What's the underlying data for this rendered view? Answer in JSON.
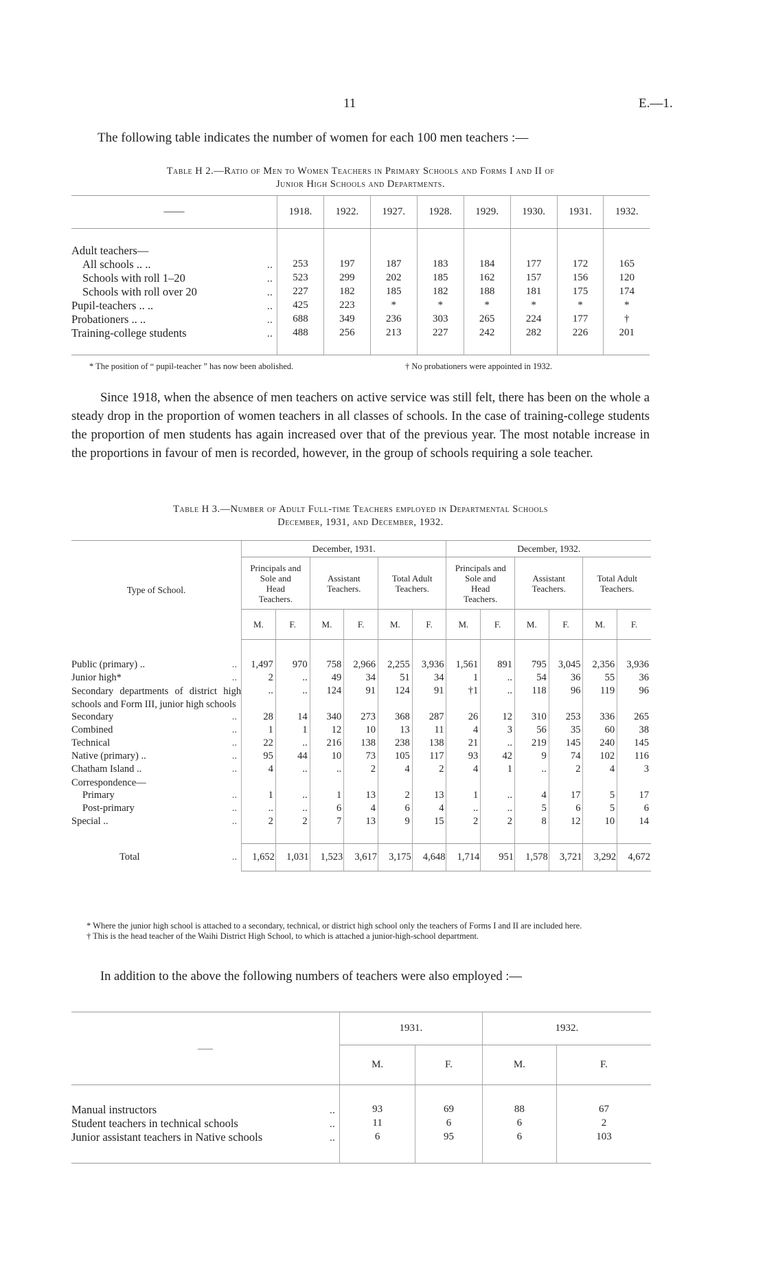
{
  "header": {
    "page_number": "11",
    "code": "E.—1."
  },
  "intro": "The following table indicates the number of women for each 100 men teachers :—",
  "table_h2": {
    "caption_line1": "Table H 2.—Ratio of Men to Women Teachers in Primary Schools and Forms I and II of",
    "caption_line2": "Junior High Schools and Departments.",
    "corner": "——",
    "years": [
      "1918.",
      "1922.",
      "1927.",
      "1928.",
      "1929.",
      "1930.",
      "1931.",
      "1932."
    ],
    "rows": [
      {
        "label": "Adult teachers—",
        "indent": false,
        "dots": "",
        "values": [
          "",
          "",
          "",
          "",
          "",
          "",
          "",
          ""
        ]
      },
      {
        "label": "All schools  ..     ..",
        "indent": true,
        "dots": "..",
        "values": [
          "253",
          "197",
          "187",
          "183",
          "184",
          "177",
          "172",
          "165"
        ]
      },
      {
        "label": "Schools with roll 1–20",
        "indent": true,
        "dots": "..",
        "values": [
          "523",
          "299",
          "202",
          "185",
          "162",
          "157",
          "156",
          "120"
        ]
      },
      {
        "label": "Schools with roll over 20",
        "indent": true,
        "dots": "..",
        "values": [
          "227",
          "182",
          "185",
          "182",
          "188",
          "181",
          "175",
          "174"
        ]
      },
      {
        "label": "Pupil-teachers ..     ..",
        "indent": false,
        "dots": "..",
        "values": [
          "425",
          "223",
          "*",
          "*",
          "*",
          "*",
          "*",
          "*"
        ]
      },
      {
        "label": "Probationers  ..     ..",
        "indent": false,
        "dots": "..",
        "values": [
          "688",
          "349",
          "236",
          "303",
          "265",
          "224",
          "177",
          "†"
        ]
      },
      {
        "label": "Training-college students",
        "indent": false,
        "dots": "..",
        "values": [
          "488",
          "256",
          "213",
          "227",
          "242",
          "282",
          "226",
          "201"
        ]
      }
    ],
    "footnote_star": "* The position of “ pupil-teacher ” has now been abolished.",
    "footnote_dagger": "† No probationers were appointed in 1932."
  },
  "paragraph1": "Since 1918, when the absence of men teachers on active service was still felt, there has been on the whole a steady drop in the proportion of women teachers in all classes of schools. In the case of training-college students the proportion of men students has again increased over that of the previous year. The most notable increase in the proportions in favour of men is recorded, however, in the group of schools requiring a sole teacher.",
  "table_h3": {
    "caption_line1": "Table H 3.—Number of Adult Full-time Teachers employed in Departmental Schools",
    "caption_line2": "December, 1931, and December, 1932.",
    "type_header": "Type of School.",
    "periods": [
      "December, 1931.",
      "December, 1932."
    ],
    "groups": [
      "Principals and Sole and Head Teachers.",
      "Assistant Teachers.",
      "Total Adult Teachers.",
      "Principals and Sole and Head Teachers.",
      "Assistant Teachers.",
      "Total Adult Teachers."
    ],
    "sexes": [
      "M.",
      "F.",
      "M.",
      "F.",
      "M.",
      "F.",
      "M.",
      "F.",
      "M.",
      "F.",
      "M.",
      "F."
    ],
    "rows": [
      {
        "label": "Public (primary) ..",
        "indent": false,
        "dots": "..",
        "values": [
          "1,497",
          "970",
          "758",
          "2,966",
          "2,255",
          "3,936",
          "1,561",
          "891",
          "795",
          "3,045",
          "2,356",
          "3,936"
        ]
      },
      {
        "label": "Junior high*",
        "indent": false,
        "dots": "..",
        "values": [
          "2",
          "..",
          "49",
          "34",
          "51",
          "34",
          "1",
          "..",
          "54",
          "36",
          "55",
          "36"
        ]
      },
      {
        "label": "Secondary departments of district high schools and Form III, junior high schools",
        "indent": false,
        "dots": "",
        "values": [
          "..",
          "..",
          "124",
          "91",
          "124",
          "91",
          "†1",
          "..",
          "118",
          "96",
          "119",
          "96"
        ]
      },
      {
        "label": "Secondary",
        "indent": false,
        "dots": "..",
        "values": [
          "28",
          "14",
          "340",
          "273",
          "368",
          "287",
          "26",
          "12",
          "310",
          "253",
          "336",
          "265"
        ]
      },
      {
        "label": "Combined",
        "indent": false,
        "dots": "..",
        "values": [
          "1",
          "1",
          "12",
          "10",
          "13",
          "11",
          "4",
          "3",
          "56",
          "35",
          "60",
          "38"
        ]
      },
      {
        "label": "Technical",
        "indent": false,
        "dots": "..",
        "values": [
          "22",
          "..",
          "216",
          "138",
          "238",
          "138",
          "21",
          "..",
          "219",
          "145",
          "240",
          "145"
        ]
      },
      {
        "label": "Native (primary) ..",
        "indent": false,
        "dots": "..",
        "values": [
          "95",
          "44",
          "10",
          "73",
          "105",
          "117",
          "93",
          "42",
          "9",
          "74",
          "102",
          "116"
        ]
      },
      {
        "label": "Chatham Island ..",
        "indent": false,
        "dots": "..",
        "values": [
          "4",
          "..",
          "..",
          "2",
          "4",
          "2",
          "4",
          "1",
          "..",
          "2",
          "4",
          "3"
        ]
      },
      {
        "label": "Correspondence—",
        "indent": false,
        "dots": "",
        "values": [
          "",
          "",
          "",
          "",
          "",
          "",
          "",
          "",
          "",
          "",
          "",
          ""
        ]
      },
      {
        "label": "Primary",
        "indent": true,
        "dots": "..",
        "values": [
          "1",
          "..",
          "1",
          "13",
          "2",
          "13",
          "1",
          "..",
          "4",
          "17",
          "5",
          "17"
        ]
      },
      {
        "label": "Post-primary",
        "indent": true,
        "dots": "..",
        "values": [
          "..",
          "..",
          "6",
          "4",
          "6",
          "4",
          "..",
          "..",
          "5",
          "6",
          "5",
          "6"
        ]
      },
      {
        "label": "Special ..",
        "indent": false,
        "dots": "..",
        "values": [
          "2",
          "2",
          "7",
          "13",
          "9",
          "15",
          "2",
          "2",
          "8",
          "12",
          "10",
          "14"
        ]
      }
    ],
    "total": {
      "label": "Total",
      "dots": "..",
      "values": [
        "1,652",
        "1,031",
        "1,523",
        "3,617",
        "3,175",
        "4,648",
        "1,714",
        "951",
        "1,578",
        "3,721",
        "3,292",
        "4,672"
      ]
    },
    "footnote_star": "* Where the junior high school is attached to a secondary, technical, or district high school only the teachers of Forms I and II are included here.",
    "footnote_dagger": "† This is the head teacher of the Waihi District High School, to which is attached a junior-high-school department."
  },
  "paragraph2": "In addition to the above the following numbers of teachers were also employed :—",
  "table_extra": {
    "corner": "——",
    "years": [
      "1931.",
      "1932."
    ],
    "sexes": [
      "M.",
      "F.",
      "M.",
      "F."
    ],
    "rows": [
      {
        "label": "Manual instructors",
        "dots": "..",
        "values": [
          "93",
          "69",
          "88",
          "67"
        ]
      },
      {
        "label": "Student teachers in technical schools",
        "dots": "..",
        "values": [
          "11",
          "6",
          "6",
          "2"
        ]
      },
      {
        "label": "Junior assistant teachers in Native schools",
        "dots": "..",
        "values": [
          "6",
          "95",
          "6",
          "103"
        ]
      }
    ]
  }
}
